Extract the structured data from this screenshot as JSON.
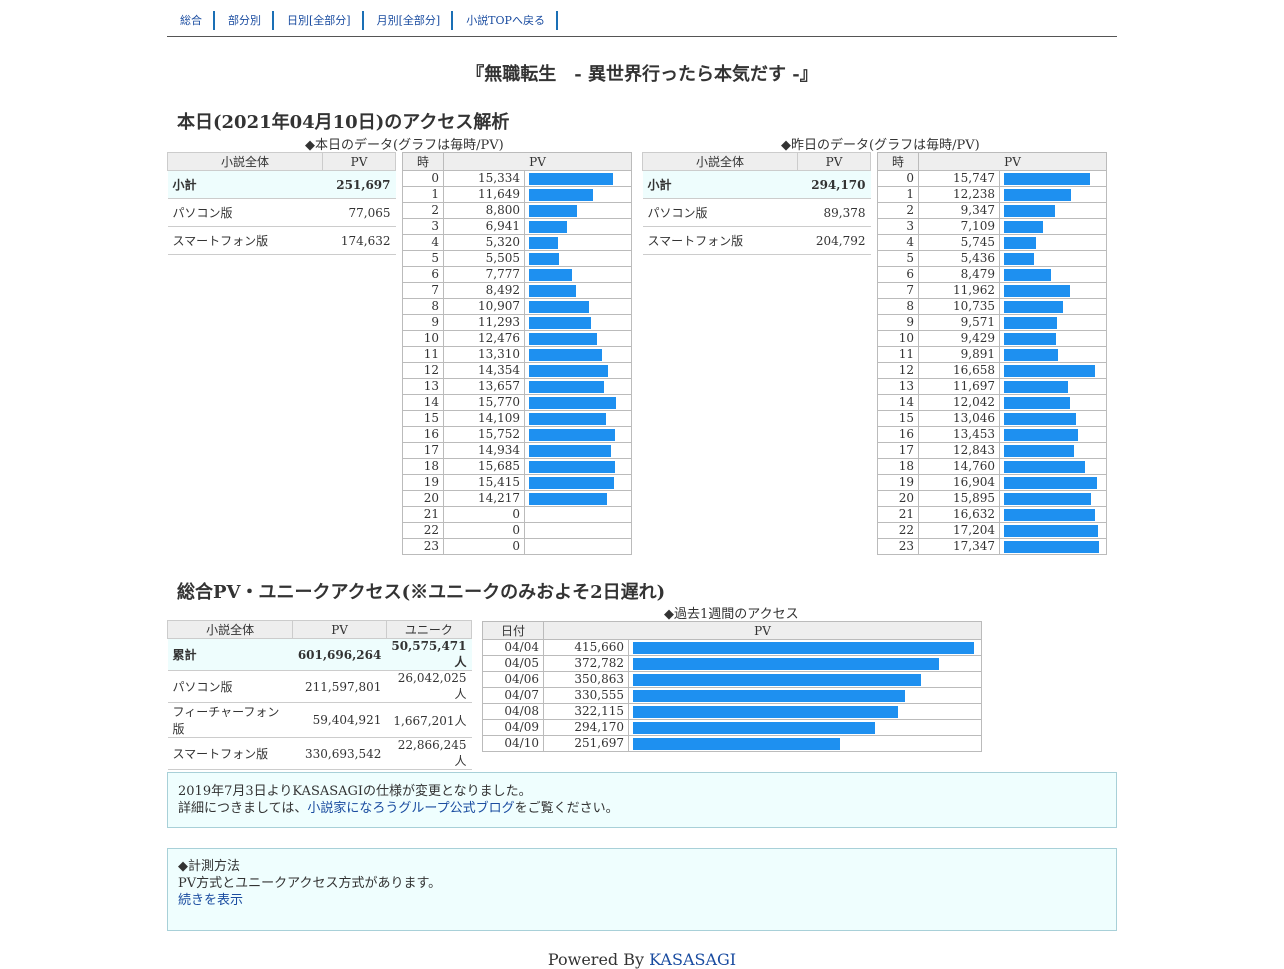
{
  "nav": [
    "総合",
    "部分別",
    "日別[全部分]",
    "月別[全部分]",
    "小説TOPへ戻る"
  ],
  "title": "『無職転生　- 異世界行ったら本気だす -』",
  "today_heading": "本日(2021年04月10日)のアクセス解析",
  "today_caption": "◆本日のデータ(グラフは毎時/PV)",
  "yesterday_caption": "◆昨日のデータ(グラフは毎時/PV)",
  "summary_headers": [
    "小説全体",
    "PV"
  ],
  "hour_headers": [
    "時",
    "PV"
  ],
  "today_summary": [
    {
      "label": "小計",
      "value": "251,697"
    },
    {
      "label": "パソコン版",
      "value": "77,065"
    },
    {
      "label": "スマートフォン版",
      "value": "174,632"
    }
  ],
  "yesterday_summary": [
    {
      "label": "小計",
      "value": "294,170"
    },
    {
      "label": "パソコン版",
      "value": "89,378"
    },
    {
      "label": "スマートフォン版",
      "value": "204,792"
    }
  ],
  "today_hours": [
    "15,334",
    "11,649",
    "8,800",
    "6,941",
    "5,320",
    "5,505",
    "7,777",
    "8,492",
    "10,907",
    "11,293",
    "12,476",
    "13,310",
    "14,354",
    "13,657",
    "15,770",
    "14,109",
    "15,752",
    "14,934",
    "15,685",
    "15,415",
    "14,217",
    "0",
    "0",
    "0"
  ],
  "yesterday_hours": [
    "15,747",
    "12,238",
    "9,347",
    "7,109",
    "5,745",
    "5,436",
    "8,479",
    "11,962",
    "10,735",
    "9,571",
    "9,429",
    "9,891",
    "16,658",
    "11,697",
    "12,042",
    "13,046",
    "13,453",
    "12,843",
    "14,760",
    "16,904",
    "15,895",
    "16,632",
    "17,204",
    "17,347"
  ],
  "total_heading": "総合PV・ユニークアクセス(※ユニークのみおよそ2日遅れ)",
  "total_headers": [
    "小説全体",
    "PV",
    "ユニーク"
  ],
  "total_rows": [
    {
      "label": "累計",
      "pv": "601,696,264",
      "uniq": "50,575,471人"
    },
    {
      "label": "パソコン版",
      "pv": "211,597,801",
      "uniq": "26,042,025人"
    },
    {
      "label": "フィーチャーフォン版",
      "pv": "59,404,921",
      "uniq": "1,667,201人"
    },
    {
      "label": "スマートフォン版",
      "pv": "330,693,542",
      "uniq": "22,866,245人"
    }
  ],
  "week_caption": "◆過去1週間のアクセス",
  "week_headers": [
    "日付",
    "PV"
  ],
  "week_rows": [
    {
      "date": "04/04",
      "pv": "415,660"
    },
    {
      "date": "04/05",
      "pv": "372,782"
    },
    {
      "date": "04/06",
      "pv": "350,863"
    },
    {
      "date": "04/07",
      "pv": "330,555"
    },
    {
      "date": "04/08",
      "pv": "322,115"
    },
    {
      "date": "04/09",
      "pv": "294,170"
    },
    {
      "date": "04/10",
      "pv": "251,697"
    }
  ],
  "notice": {
    "line1": "2019年7月3日よりKASASAGIの仕様が変更となりました。",
    "line2_pre": "詳細につきましては、",
    "link": "小説家になろうグループ公式ブログ",
    "line2_post": "をご覧ください。"
  },
  "method": {
    "heading": "◆計測方法",
    "text": "PV方式とユニークアクセス方式があります。",
    "link": "続きを表示"
  },
  "footer": {
    "prefix": "Powered By ",
    "link": "KASASAGI"
  },
  "colors": {
    "bar": "#1e90f0",
    "link": "#1a4ca0",
    "subtotal_bg": "#eefdfd"
  }
}
